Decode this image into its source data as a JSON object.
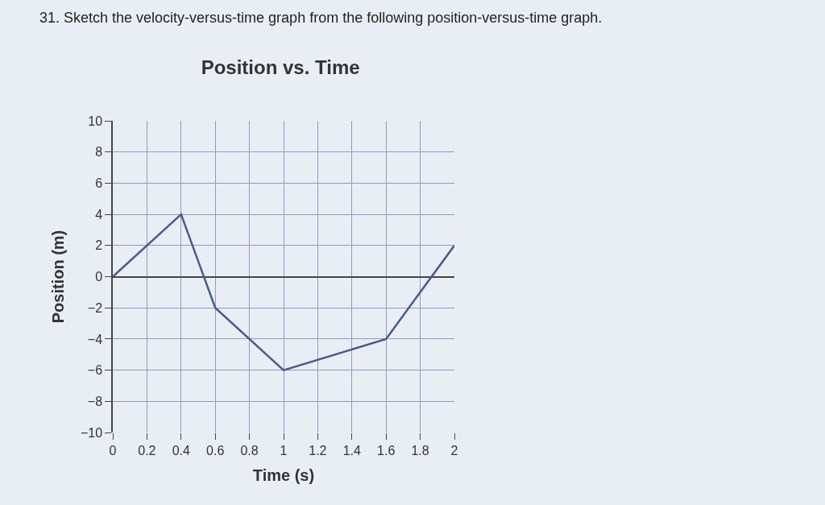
{
  "chart_data": {
    "type": "line",
    "title": "Position vs. Time",
    "xlabel": "Time (s)",
    "ylabel": "Position (m)",
    "annotations": [
      "31. Sketch the velocity-versus-time graph from the following position-versus-time graph."
    ],
    "x": [
      0,
      0.4,
      0.6,
      1,
      1.6,
      2
    ],
    "series": [
      {
        "color": "#4a5a8c",
        "values": [
          0,
          4,
          -2,
          -6,
          -4,
          2
        ]
      }
    ],
    "xlim": [
      0,
      2
    ],
    "ylim": [
      -10,
      10
    ],
    "xticks": [
      0,
      0.2,
      0.4,
      0.6,
      0.8,
      1,
      1.2,
      1.4,
      1.6,
      1.8,
      2
    ],
    "yticks": [
      {
        "value": -10,
        "label": "−10"
      },
      {
        "value": -8,
        "label": "−8"
      },
      {
        "value": -6,
        "label": "−6"
      },
      {
        "value": -4,
        "label": "−4"
      },
      {
        "value": -2,
        "label": "−2"
      },
      0,
      2,
      4,
      6,
      8,
      10
    ],
    "grid": true,
    "marker": "none",
    "line_style": "solid"
  }
}
